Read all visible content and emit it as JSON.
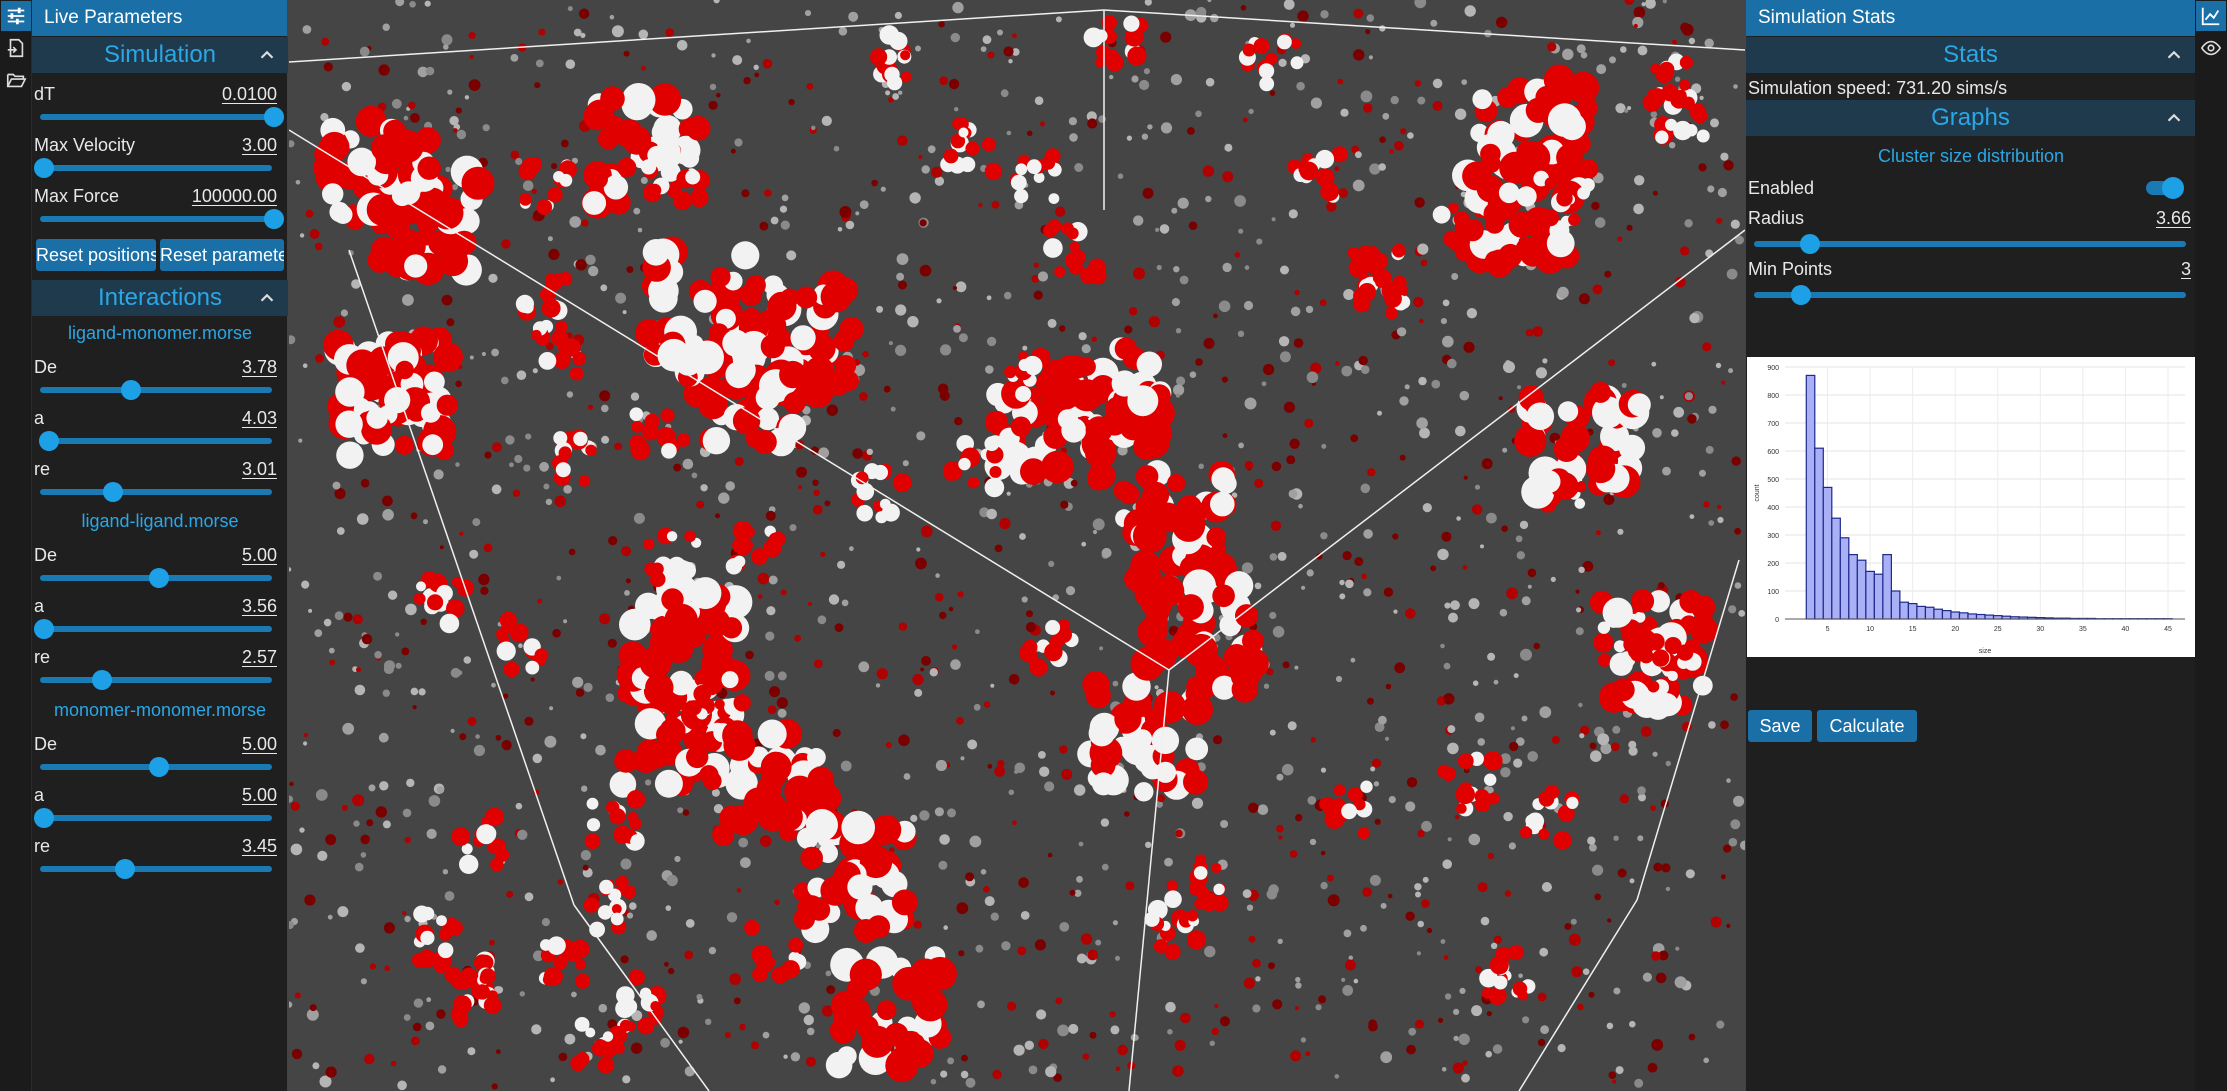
{
  "left_panel": {
    "title": "Live Parameters",
    "simulation": {
      "header": "Simulation",
      "params": [
        {
          "label": "dT",
          "value": "0.0100",
          "level": 1.0
        },
        {
          "label": "Max Velocity",
          "value": "3.00",
          "level": 0.0
        },
        {
          "label": "Max Force",
          "value": "100000.00",
          "level": 1.0
        }
      ],
      "reset_positions": "Reset positions",
      "reset_parameters": "Reset parameters"
    },
    "interactions": {
      "header": "Interactions",
      "groups": [
        {
          "name": "ligand-monomer.morse",
          "params": [
            {
              "label": "De",
              "value": "3.78",
              "level": 0.38
            },
            {
              "label": "a",
              "value": "4.03",
              "level": 0.02
            },
            {
              "label": "re",
              "value": "3.01",
              "level": 0.3
            }
          ]
        },
        {
          "name": "ligand-ligand.morse",
          "params": [
            {
              "label": "De",
              "value": "5.00",
              "level": 0.5
            },
            {
              "label": "a",
              "value": "3.56",
              "level": 0.0
            },
            {
              "label": "re",
              "value": "2.57",
              "level": 0.25
            }
          ]
        },
        {
          "name": "monomer-monomer.morse",
          "params": [
            {
              "label": "De",
              "value": "5.00",
              "level": 0.5
            },
            {
              "label": "a",
              "value": "5.00",
              "level": 0.0
            },
            {
              "label": "re",
              "value": "3.45",
              "level": 0.35
            }
          ]
        }
      ]
    }
  },
  "right_panel": {
    "title": "Simulation Stats",
    "stats_header": "Stats",
    "speed_text": "Simulation speed: 731.20 sims/s",
    "graphs_header": "Graphs",
    "graph_title": "Cluster size distribution",
    "enabled_label": "Enabled",
    "enabled": true,
    "radius_label": "Radius",
    "radius_value": "3.66",
    "radius_level": 0.12,
    "min_points_label": "Min Points",
    "min_points_value": "3",
    "min_points_level": 0.1,
    "save_label": "Save",
    "calculate_label": "Calculate"
  },
  "icons": {
    "left_strip": [
      "sliders-icon",
      "file-import-icon",
      "folder-open-icon"
    ],
    "right_strip": [
      "chart-line-icon",
      "eye-icon"
    ],
    "accent": "#1a6fa6",
    "particle_red": "#e00000",
    "particle_white": "#f2f2f2"
  },
  "chart_data": {
    "type": "bar",
    "title": "",
    "xlabel": "size",
    "ylabel": "count",
    "x": [
      3,
      4,
      5,
      6,
      7,
      8,
      9,
      10,
      11,
      12,
      13,
      14,
      15,
      16,
      17,
      18,
      19,
      20,
      21,
      22,
      23,
      24,
      25,
      26,
      27,
      28,
      29,
      30,
      31,
      32,
      33,
      34,
      35,
      36,
      37,
      38,
      39,
      40,
      41,
      42,
      43,
      44,
      45
    ],
    "values": [
      870,
      610,
      470,
      360,
      290,
      230,
      210,
      170,
      160,
      230,
      100,
      60,
      55,
      45,
      42,
      35,
      30,
      25,
      22,
      18,
      16,
      14,
      12,
      10,
      8,
      7,
      6,
      5,
      4,
      3,
      3,
      2,
      2,
      2,
      1,
      1,
      1,
      1,
      1,
      1,
      1,
      1,
      1
    ],
    "xlim": [
      0,
      47
    ],
    "ylim": [
      0,
      900
    ],
    "x_ticks": [
      "5",
      "10",
      "15",
      "20",
      "25",
      "30",
      "35",
      "40",
      "45"
    ],
    "y_ticks": [
      "0",
      "100",
      "200",
      "300",
      "400",
      "500",
      "600",
      "700",
      "800",
      "900"
    ],
    "grid": true
  }
}
